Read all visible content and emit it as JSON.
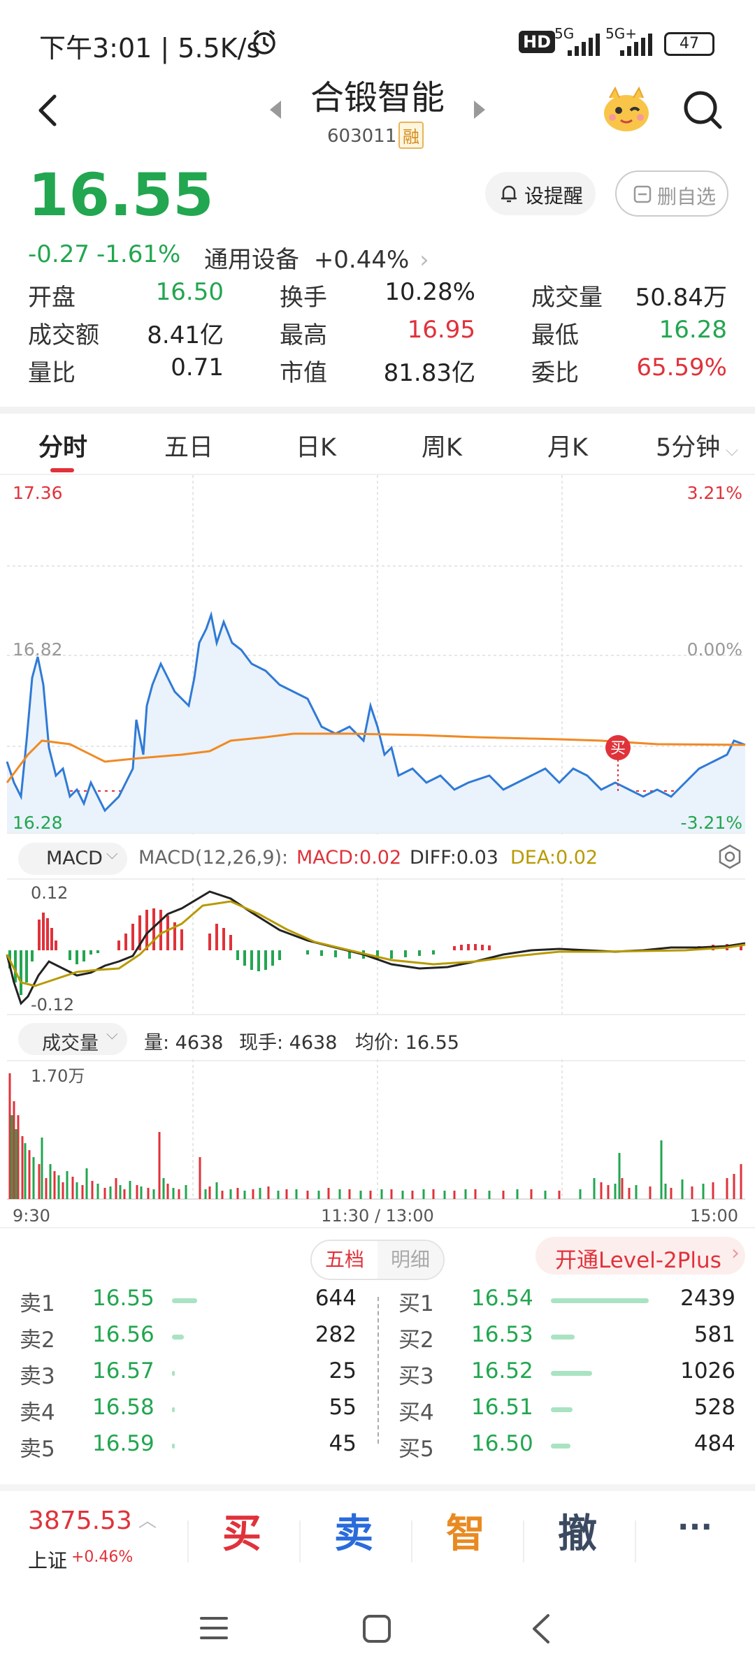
{
  "status_bar": {
    "time": "下午3:01 | 5.5K/s",
    "network1": "5G",
    "network2": "5G+",
    "hd": "HD",
    "battery": "47"
  },
  "header": {
    "stock_name": "合锻智能",
    "stock_code": "603011",
    "margin_badge": "融"
  },
  "quote": {
    "price": "16.55",
    "change": "-0.27",
    "change_pct": "-1.61%",
    "sector": "通用设备",
    "sector_change": "+0.44%",
    "alert_button": "设提醒",
    "remove_fav_button": "删自选"
  },
  "stats": [
    {
      "label": "开盘",
      "value": "16.50",
      "color": "#22a650"
    },
    {
      "label": "换手",
      "value": "10.28%",
      "color": "#222222"
    },
    {
      "label": "成交量",
      "value": "50.84万",
      "color": "#222222"
    },
    {
      "label": "成交额",
      "value": "8.41亿",
      "color": "#222222"
    },
    {
      "label": "最高",
      "value": "16.95",
      "color": "#e0323a"
    },
    {
      "label": "最低",
      "value": "16.28",
      "color": "#22a650"
    },
    {
      "label": "量比",
      "value": "0.71",
      "color": "#222222"
    },
    {
      "label": "市值",
      "value": "81.83亿",
      "color": "#222222"
    },
    {
      "label": "委比",
      "value": "65.59%",
      "color": "#e0323a"
    }
  ],
  "tabs": [
    "分时",
    "五日",
    "日K",
    "周K",
    "月K",
    "5分钟"
  ],
  "chart": {
    "price_high": "17.36",
    "price_mid": "16.82",
    "price_low": "16.28",
    "pct_high": "3.21%",
    "pct_mid": "0.00%",
    "pct_low": "-3.21%",
    "buy_marker": "买"
  },
  "macd": {
    "selector": "MACD",
    "params": "MACD(12,26,9):",
    "macd": "MACD:0.02",
    "diff": "DIFF:0.03",
    "dea": "DEA:0.02",
    "axis_top": "0.12",
    "axis_bottom": "-0.12"
  },
  "volume": {
    "selector": "成交量",
    "amount": "量: 4638",
    "current": "现手: 4638",
    "avg": "均价: 16.55",
    "axis_top": "1.70万",
    "time_start": "9:30",
    "time_mid": "11:30 / 13:00",
    "time_end": "15:00"
  },
  "orderbook": {
    "tab_active": "五档",
    "tab_inactive": "明细",
    "level2": "开通Level-2Plus",
    "sell": [
      {
        "label": "卖1",
        "price": "16.55",
        "vol": "644",
        "fill": 0.26
      },
      {
        "label": "卖2",
        "price": "16.56",
        "vol": "282",
        "fill": 0.12
      },
      {
        "label": "卖3",
        "price": "16.57",
        "vol": "25",
        "fill": 0.01
      },
      {
        "label": "卖4",
        "price": "16.58",
        "vol": "55",
        "fill": 0.02
      },
      {
        "label": "卖5",
        "price": "16.59",
        "vol": "45",
        "fill": 0.02
      }
    ],
    "buy": [
      {
        "label": "买1",
        "price": "16.54",
        "vol": "2439",
        "fill": 1.0
      },
      {
        "label": "买2",
        "price": "16.53",
        "vol": "581",
        "fill": 0.24
      },
      {
        "label": "买3",
        "price": "16.52",
        "vol": "1026",
        "fill": 0.42
      },
      {
        "label": "买4",
        "price": "16.51",
        "vol": "528",
        "fill": 0.22
      },
      {
        "label": "买5",
        "price": "16.50",
        "vol": "484",
        "fill": 0.2
      }
    ]
  },
  "bottom_bar": {
    "index_value": "3875.53",
    "index_name": "上证",
    "index_change": "+0.46%",
    "buy": "买",
    "sell": "卖",
    "smart": "智",
    "cancel": "撤",
    "more": "···"
  }
}
